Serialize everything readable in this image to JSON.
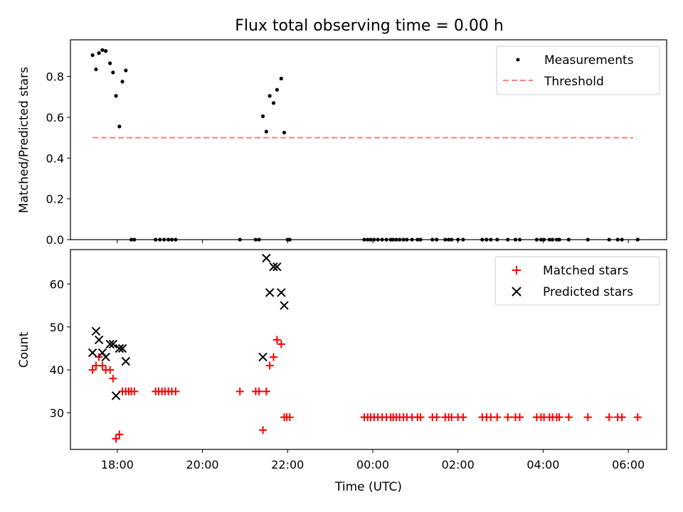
{
  "title": "Flux total observing time = 0.00 h",
  "colors": {
    "measurement": "#000000",
    "threshold": "#ff7f7f",
    "matched": "#ff0000",
    "predicted": "#000000",
    "legend_border": "#cccccc"
  },
  "chart_data": [
    {
      "type": "scatter",
      "ylabel": "Matched/Predicted stars",
      "ylim": [
        0,
        0.98
      ],
      "yticks": [
        0.0,
        0.2,
        0.4,
        0.6,
        0.8
      ],
      "ytick_labels": [
        "0.0",
        "0.2",
        "0.4",
        "0.6",
        "0.8"
      ],
      "x_unit": "hours since 00:00 UTC of first day",
      "xlim": [
        16.9,
        30.9
      ],
      "legend_position": "top-right",
      "legend": [
        "Measurements",
        "Threshold"
      ],
      "threshold": {
        "name": "Threshold",
        "y": 0.5,
        "x_start": 17.42,
        "x_end": 30.12
      },
      "series": [
        {
          "name": "Measurements",
          "marker": "dot",
          "points": [
            [
              17.42,
              0.905
            ],
            [
              17.5,
              0.835
            ],
            [
              17.57,
              0.915
            ],
            [
              17.65,
              0.93
            ],
            [
              17.73,
              0.925
            ],
            [
              17.83,
              0.865
            ],
            [
              17.9,
              0.82
            ],
            [
              17.97,
              0.705
            ],
            [
              18.05,
              0.555
            ],
            [
              18.12,
              0.775
            ],
            [
              18.2,
              0.83
            ],
            [
              18.33,
              0.0
            ],
            [
              18.4,
              0.0
            ],
            [
              18.9,
              0.0
            ],
            [
              19.0,
              0.0
            ],
            [
              19.1,
              0.0
            ],
            [
              19.2,
              0.0
            ],
            [
              19.28,
              0.0
            ],
            [
              19.37,
              0.0
            ],
            [
              20.88,
              0.0
            ],
            [
              21.25,
              0.0
            ],
            [
              21.33,
              0.0
            ],
            [
              21.42,
              0.605
            ],
            [
              21.5,
              0.53
            ],
            [
              21.58,
              0.705
            ],
            [
              21.67,
              0.67
            ],
            [
              21.75,
              0.735
            ],
            [
              21.85,
              0.79
            ],
            [
              21.92,
              0.525
            ],
            [
              22.0,
              0.0
            ],
            [
              22.05,
              0.0
            ],
            [
              23.8,
              0.0
            ],
            [
              23.88,
              0.0
            ],
            [
              23.95,
              0.0
            ],
            [
              24.03,
              0.0
            ],
            [
              24.12,
              0.0
            ],
            [
              24.22,
              0.0
            ],
            [
              24.32,
              0.0
            ],
            [
              24.42,
              0.0
            ],
            [
              24.48,
              0.0
            ],
            [
              24.55,
              0.0
            ],
            [
              24.63,
              0.0
            ],
            [
              24.72,
              0.0
            ],
            [
              24.8,
              0.0
            ],
            [
              24.92,
              0.0
            ],
            [
              25.05,
              0.0
            ],
            [
              25.12,
              0.0
            ],
            [
              25.4,
              0.0
            ],
            [
              25.5,
              0.0
            ],
            [
              25.7,
              0.0
            ],
            [
              25.78,
              0.0
            ],
            [
              25.85,
              0.0
            ],
            [
              26.0,
              0.0
            ],
            [
              26.12,
              0.0
            ],
            [
              26.57,
              0.0
            ],
            [
              26.67,
              0.0
            ],
            [
              26.77,
              0.0
            ],
            [
              26.92,
              0.0
            ],
            [
              27.17,
              0.0
            ],
            [
              27.35,
              0.0
            ],
            [
              27.45,
              0.0
            ],
            [
              27.85,
              0.0
            ],
            [
              27.95,
              0.0
            ],
            [
              28.02,
              0.0
            ],
            [
              28.15,
              0.0
            ],
            [
              28.22,
              0.0
            ],
            [
              28.32,
              0.0
            ],
            [
              28.38,
              0.0
            ],
            [
              28.6,
              0.0
            ],
            [
              29.05,
              0.0
            ],
            [
              29.55,
              0.0
            ],
            [
              29.75,
              0.0
            ],
            [
              29.85,
              0.0
            ],
            [
              30.22,
              0.0
            ]
          ]
        }
      ]
    },
    {
      "type": "scatter",
      "xlabel": "Time (UTC)",
      "ylabel": "Count",
      "ylim": [
        21.5,
        68
      ],
      "yticks": [
        30,
        40,
        50,
        60
      ],
      "ytick_labels": [
        "30",
        "40",
        "50",
        "60"
      ],
      "x_unit": "hours since 00:00 UTC of first day",
      "xlim": [
        16.9,
        30.9
      ],
      "xticks": [
        18,
        20,
        22,
        24,
        26,
        28,
        30
      ],
      "xtick_labels": [
        "18:00",
        "20:00",
        "22:00",
        "00:00",
        "02:00",
        "04:00",
        "06:00"
      ],
      "legend_position": "top-right",
      "legend": [
        "Matched stars",
        "Predicted stars"
      ],
      "series": [
        {
          "name": "Matched stars",
          "marker": "plus",
          "points": [
            [
              17.42,
              40
            ],
            [
              17.5,
              41
            ],
            [
              17.57,
              43
            ],
            [
              17.65,
              41
            ],
            [
              17.73,
              40
            ],
            [
              17.83,
              40
            ],
            [
              17.9,
              38
            ],
            [
              17.97,
              24
            ],
            [
              18.05,
              25
            ],
            [
              18.12,
              35
            ],
            [
              18.2,
              35
            ],
            [
              18.27,
              35
            ],
            [
              18.33,
              35
            ],
            [
              18.4,
              35
            ],
            [
              18.9,
              35
            ],
            [
              18.97,
              35
            ],
            [
              19.05,
              35
            ],
            [
              19.12,
              35
            ],
            [
              19.2,
              35
            ],
            [
              19.28,
              35
            ],
            [
              19.37,
              35
            ],
            [
              20.88,
              35
            ],
            [
              21.25,
              35
            ],
            [
              21.33,
              35
            ],
            [
              21.42,
              26
            ],
            [
              21.5,
              35
            ],
            [
              21.58,
              41
            ],
            [
              21.67,
              43
            ],
            [
              21.75,
              47
            ],
            [
              21.85,
              46
            ],
            [
              21.92,
              29
            ],
            [
              21.98,
              29
            ],
            [
              22.05,
              29
            ],
            [
              23.8,
              29
            ],
            [
              23.88,
              29
            ],
            [
              23.95,
              29
            ],
            [
              24.03,
              29
            ],
            [
              24.12,
              29
            ],
            [
              24.22,
              29
            ],
            [
              24.32,
              29
            ],
            [
              24.42,
              29
            ],
            [
              24.48,
              29
            ],
            [
              24.55,
              29
            ],
            [
              24.63,
              29
            ],
            [
              24.72,
              29
            ],
            [
              24.8,
              29
            ],
            [
              24.92,
              29
            ],
            [
              25.05,
              29
            ],
            [
              25.12,
              29
            ],
            [
              25.4,
              29
            ],
            [
              25.5,
              29
            ],
            [
              25.7,
              29
            ],
            [
              25.78,
              29
            ],
            [
              25.85,
              29
            ],
            [
              26.0,
              29
            ],
            [
              26.12,
              29
            ],
            [
              26.57,
              29
            ],
            [
              26.67,
              29
            ],
            [
              26.77,
              29
            ],
            [
              26.92,
              29
            ],
            [
              27.17,
              29
            ],
            [
              27.35,
              29
            ],
            [
              27.45,
              29
            ],
            [
              27.85,
              29
            ],
            [
              27.95,
              29
            ],
            [
              28.02,
              29
            ],
            [
              28.15,
              29
            ],
            [
              28.22,
              29
            ],
            [
              28.32,
              29
            ],
            [
              28.38,
              29
            ],
            [
              28.6,
              29
            ],
            [
              29.05,
              29
            ],
            [
              29.55,
              29
            ],
            [
              29.75,
              29
            ],
            [
              29.85,
              29
            ],
            [
              30.22,
              29
            ]
          ]
        },
        {
          "name": "Predicted stars",
          "marker": "x",
          "points": [
            [
              17.42,
              44
            ],
            [
              17.5,
              49
            ],
            [
              17.57,
              47
            ],
            [
              17.65,
              44
            ],
            [
              17.73,
              43
            ],
            [
              17.83,
              46
            ],
            [
              17.9,
              46
            ],
            [
              17.97,
              34
            ],
            [
              18.05,
              45
            ],
            [
              18.12,
              45
            ],
            [
              18.2,
              42
            ],
            [
              21.42,
              43
            ],
            [
              21.5,
              66
            ],
            [
              21.58,
              58
            ],
            [
              21.67,
              64
            ],
            [
              21.75,
              64
            ],
            [
              21.85,
              58
            ],
            [
              21.92,
              55
            ]
          ]
        }
      ]
    }
  ]
}
